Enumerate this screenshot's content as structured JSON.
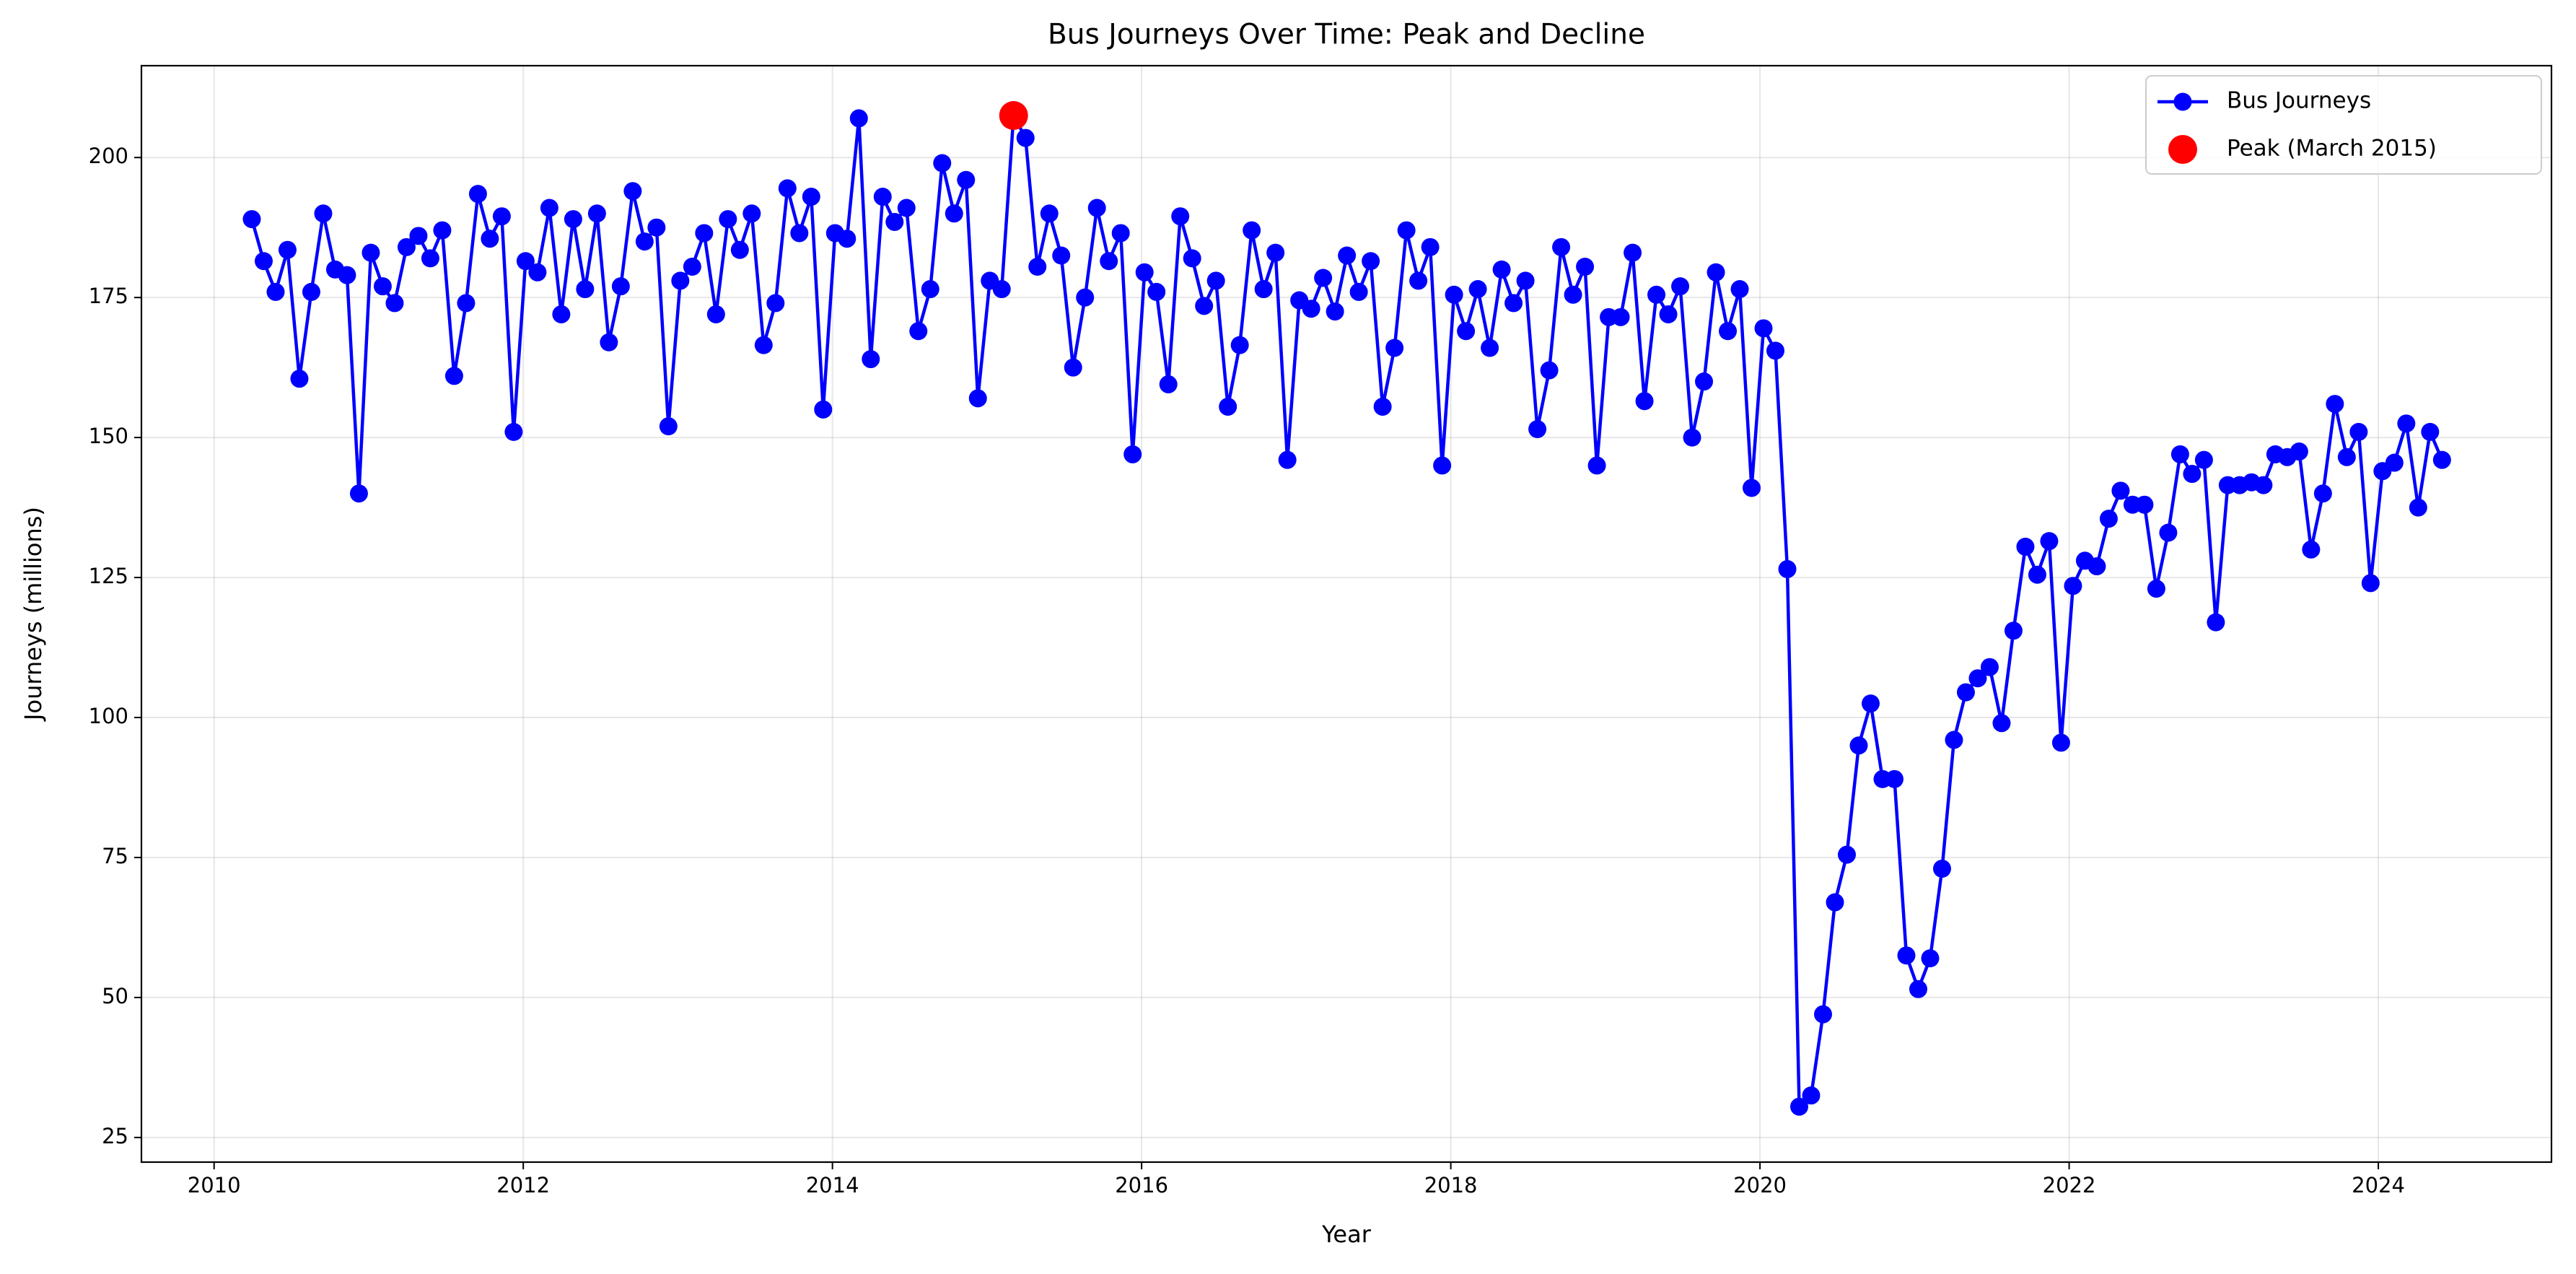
{
  "chart_data": {
    "type": "line",
    "title": "Bus Journeys Over Time: Peak and Decline",
    "x_label": "Year",
    "y_label": "Journeys (millions)",
    "xlim": [
      2009.53,
      2025.12
    ],
    "ylim": [
      20.6,
      216.4
    ],
    "xticks": [
      2010,
      2012,
      2014,
      2016,
      2018,
      2020,
      2022,
      2024
    ],
    "yticks": [
      25,
      50,
      75,
      100,
      125,
      150,
      175,
      200
    ],
    "grid": true,
    "legend": "upper right",
    "series": [
      {
        "name": "Bus Journeys",
        "color": "#0000ff",
        "type": "line",
        "x": [
          2010.244,
          2010.321,
          2010.398,
          2010.475,
          2010.552,
          2010.629,
          2010.706,
          2010.783,
          2010.86,
          2010.937,
          2011.014,
          2011.091,
          2011.168,
          2011.245,
          2011.322,
          2011.399,
          2011.476,
          2011.553,
          2011.63,
          2011.707,
          2011.784,
          2011.861,
          2011.938,
          2012.015,
          2012.092,
          2012.169,
          2012.246,
          2012.323,
          2012.4,
          2012.477,
          2012.554,
          2012.631,
          2012.708,
          2012.785,
          2012.862,
          2012.939,
          2013.016,
          2013.093,
          2013.17,
          2013.247,
          2013.324,
          2013.401,
          2013.478,
          2013.555,
          2013.632,
          2013.709,
          2013.786,
          2013.863,
          2013.94,
          2014.017,
          2014.094,
          2014.171,
          2014.248,
          2014.325,
          2014.402,
          2014.479,
          2014.556,
          2014.633,
          2014.71,
          2014.787,
          2014.864,
          2014.941,
          2015.018,
          2015.095,
          2015.172,
          2015.249,
          2015.326,
          2015.403,
          2015.48,
          2015.557,
          2015.634,
          2015.711,
          2015.788,
          2015.865,
          2015.942,
          2016.019,
          2016.096,
          2016.173,
          2016.25,
          2016.327,
          2016.404,
          2016.481,
          2016.558,
          2016.635,
          2016.712,
          2016.789,
          2016.866,
          2016.943,
          2017.02,
          2017.097,
          2017.174,
          2017.251,
          2017.328,
          2017.405,
          2017.482,
          2017.559,
          2017.636,
          2017.713,
          2017.79,
          2017.867,
          2017.944,
          2018.021,
          2018.098,
          2018.175,
          2018.252,
          2018.329,
          2018.406,
          2018.483,
          2018.56,
          2018.637,
          2018.714,
          2018.791,
          2018.868,
          2018.945,
          2019.022,
          2019.099,
          2019.176,
          2019.253,
          2019.33,
          2019.407,
          2019.484,
          2019.561,
          2019.638,
          2019.715,
          2019.792,
          2019.869,
          2019.946,
          2020.023,
          2020.1,
          2020.177,
          2020.254,
          2020.331,
          2020.408,
          2020.485,
          2020.562,
          2020.639,
          2020.716,
          2020.793,
          2020.87,
          2020.947,
          2021.024,
          2021.101,
          2021.178,
          2021.255,
          2021.332,
          2021.409,
          2021.486,
          2021.563,
          2021.64,
          2021.717,
          2021.794,
          2021.871,
          2021.948,
          2022.025,
          2022.102,
          2022.179,
          2022.256,
          2022.333,
          2022.41,
          2022.487,
          2022.564,
          2022.641,
          2022.718,
          2022.795,
          2022.872,
          2022.949,
          2023.026,
          2023.103,
          2023.18,
          2023.257,
          2023.334,
          2023.411,
          2023.488,
          2023.565,
          2023.642,
          2023.719,
          2023.796,
          2023.873,
          2023.95,
          2024.027,
          2024.104,
          2024.181,
          2024.258,
          2024.335,
          2024.412
        ],
        "values": [
          189,
          181.5,
          176,
          183.5,
          160.5,
          176,
          190,
          180,
          179,
          140,
          183,
          177,
          174,
          184,
          186,
          182,
          187,
          161,
          174,
          193.5,
          185.5,
          189.5,
          151,
          181.5,
          179.5,
          191,
          172,
          189,
          176.5,
          190,
          167,
          177,
          194,
          185,
          187.5,
          152,
          178,
          180.5,
          186.5,
          172,
          189,
          183.5,
          190,
          166.5,
          174,
          194.5,
          186.5,
          193,
          155,
          186.5,
          185.5,
          207,
          164,
          193,
          188.5,
          191,
          169,
          176.5,
          199,
          190,
          196,
          157,
          178,
          176.5,
          207.5,
          203.5,
          180.5,
          190,
          182.5,
          162.5,
          175,
          191,
          181.5,
          186.5,
          147,
          179.5,
          176,
          159.5,
          189.5,
          182,
          173.5,
          178,
          155.5,
          166.5,
          187,
          176.5,
          183,
          146,
          174.5,
          173,
          178.5,
          172.5,
          182.5,
          176,
          181.5,
          155.5,
          166,
          187,
          178,
          184,
          145,
          175.5,
          169,
          176.5,
          166,
          180,
          174,
          178,
          151.5,
          162,
          184,
          175.5,
          180.5,
          145,
          171.5,
          171.5,
          183,
          156.5,
          175.5,
          172,
          177,
          150,
          160,
          179.5,
          169,
          176.5,
          141,
          169.5,
          165.5,
          126.5,
          30.5,
          32.5,
          47,
          67,
          75.5,
          95,
          102.5,
          89,
          89,
          57.5,
          51.5,
          57,
          73,
          96,
          104.5,
          107,
          109,
          99,
          115.5,
          130.5,
          125.5,
          131.5,
          95.5,
          123.5,
          128,
          127,
          135.5,
          140.5,
          138,
          138,
          123,
          133,
          147,
          143.5,
          146,
          117,
          141.5,
          141.5,
          142,
          141.5,
          147,
          146.5,
          147.5,
          130,
          140,
          156,
          146.5,
          151,
          124,
          144,
          145.5,
          152.5,
          137.5,
          151,
          146
        ]
      },
      {
        "name": "Peak (March 2015)",
        "color": "#ff0000",
        "type": "scatter",
        "x": [
          2015.172
        ],
        "values": [
          207.5
        ]
      }
    ]
  }
}
